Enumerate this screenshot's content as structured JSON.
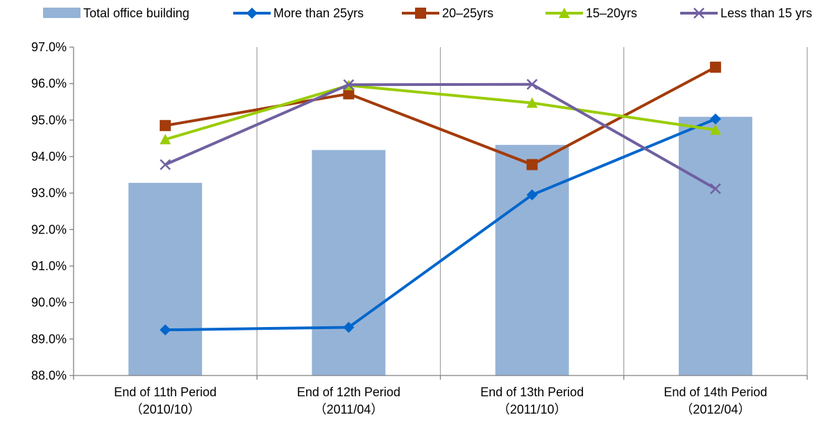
{
  "chart_data": {
    "type": "bar",
    "categories": [
      [
        "End of 11th Period",
        "（2010/10）"
      ],
      [
        "End of 12th Period",
        "（2011/04）"
      ],
      [
        "End of 13th Period",
        "（2011/10）"
      ],
      [
        "End of 14th Period",
        "（2012/04）"
      ]
    ],
    "bar_series": {
      "name": "Total office building",
      "color": "#95b3d7",
      "values": [
        93.28,
        94.18,
        94.32,
        95.09
      ]
    },
    "line_series": [
      {
        "name": "More than 25yrs",
        "color": "#0066cc",
        "marker": "diamond",
        "values": [
          89.25,
          89.32,
          92.95,
          95.03
        ]
      },
      {
        "name": "20–25yrs",
        "color": "#a33b0b",
        "marker": "square",
        "values": [
          94.85,
          95.72,
          93.78,
          96.45
        ]
      },
      {
        "name": "15–20yrs",
        "color": "#99cc00",
        "marker": "triangle",
        "values": [
          94.47,
          95.95,
          95.47,
          94.73
        ]
      },
      {
        "name": "Less than 15 yrs",
        "color": "#7060a0",
        "marker": "x",
        "values": [
          93.78,
          95.97,
          95.98,
          93.12
        ]
      }
    ],
    "ylim": [
      88.0,
      97.0
    ],
    "yticks": [
      "88.0%",
      "89.0%",
      "90.0%",
      "91.0%",
      "92.0%",
      "93.0%",
      "94.0%",
      "95.0%",
      "96.0%",
      "97.0%"
    ],
    "ytick_values": [
      88,
      89,
      90,
      91,
      92,
      93,
      94,
      95,
      96,
      97
    ],
    "grid": "vertical",
    "legend_position": "top",
    "title": "",
    "xlabel": "",
    "ylabel": ""
  }
}
